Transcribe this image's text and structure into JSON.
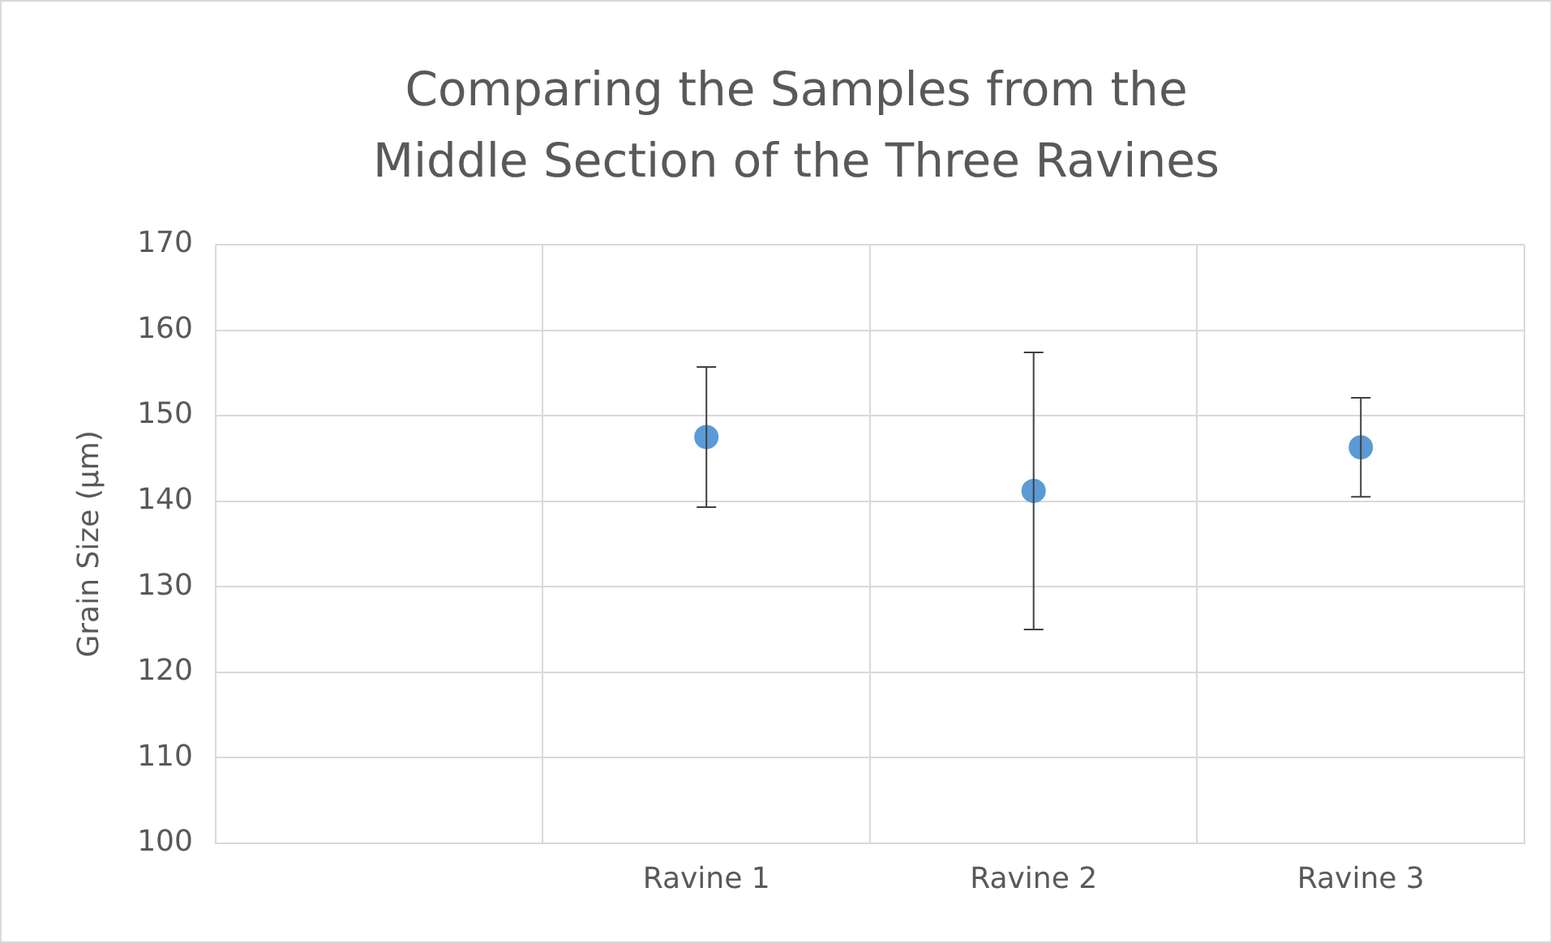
{
  "chart_data": {
    "type": "scatter",
    "title": "Comparing the Samples from the Middle Section of the Three Ravines",
    "ylabel": "Grain Size (μm)",
    "categories": [
      null,
      "Ravine 1",
      "Ravine 2",
      "Ravine 3"
    ],
    "values": [
      null,
      147.5,
      141.2,
      146.3
    ],
    "errors": [
      null,
      8.2,
      16.2,
      5.8
    ],
    "color": "#5b9bd5",
    "ylim": [
      100,
      170
    ],
    "yticks": [
      100,
      110,
      120,
      130,
      140,
      150,
      160,
      170
    ],
    "grid": true,
    "legend": false,
    "marker": "circle"
  }
}
